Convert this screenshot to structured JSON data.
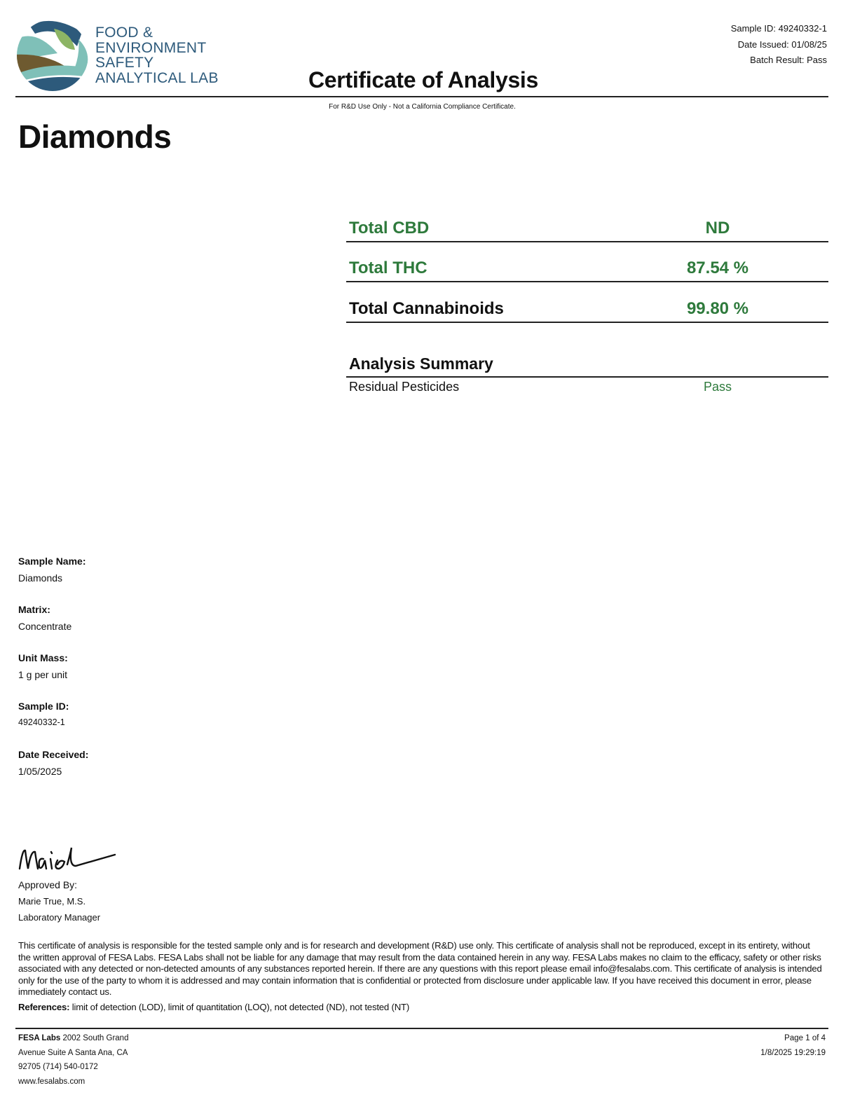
{
  "header": {
    "logo_lines": [
      "FOOD &",
      "ENVIRONMENT",
      "SAFETY",
      "ANALYTICAL LAB"
    ],
    "sample_id": "Sample ID: 49240332-1",
    "date_issued": "Date Issued: 01/08/25",
    "batch_result": "Batch Result: Pass",
    "title": "Certificate of Analysis",
    "subtitle": "For R&D Use Only - Not a California Compliance Certificate."
  },
  "product_name": "Diamonds",
  "totals": [
    {
      "label": "Total CBD",
      "value": "ND",
      "label_color": "#2e7a3c"
    },
    {
      "label": "Total THC",
      "value": "87.54 %",
      "label_color": "#2e7a3c"
    },
    {
      "label": "Total Cannabinoids",
      "value": "99.80 %",
      "label_color": "#111111"
    }
  ],
  "analysis_summary": {
    "heading": "Analysis Summary",
    "rows": [
      {
        "label": "Residual Pesticides",
        "result": "Pass"
      }
    ]
  },
  "sample_info": [
    {
      "key": "Sample Name:",
      "value": "Diamonds"
    },
    {
      "key": "Matrix:",
      "value": "Concentrate"
    },
    {
      "key": "Unit Mass:",
      "value": "1 g per unit"
    },
    {
      "key": "Sample ID:",
      "value": "49240332-1"
    },
    {
      "key": "Date Received:",
      "value": "1/05/2025"
    }
  ],
  "approval": {
    "signature": "Maries",
    "approved_by": "Approved By:",
    "name": "Marie True, M.S.",
    "role": "Laboratory Manager"
  },
  "disclaimer": "This certificate of analysis is responsible for the tested sample only and is for research and development (R&D) use only. This certificate of analysis shall not be reproduced, except in its entirety, without the written approval of FESA Labs. FESA Labs shall not be liable for any damage that may result from the data contained herein in any way. FESA Labs makes no claim to the efficacy, safety or other risks associated with any detected or non-detected amounts of any substances reported herein. If there are any questions with this report please email info@fesalabs.com. This certificate of analysis is intended only for the use of the party to whom it is addressed and may contain information that is confidential or protected from disclosure under applicable law. If you have received this document in error, please immediately contact us.",
  "references": {
    "label": "References:",
    "text": " limit of detection (LOD), limit of quantitation (LOQ), not detected (ND), not tested (NT)"
  },
  "footer": {
    "company": "FESA Labs",
    "address_line1": " 2002 South Grand",
    "address_line2": "Avenue Suite A Santa Ana, CA",
    "address_line3": "92705 (714) 540-0172",
    "website": "www.fesalabs.com",
    "page": "Page 1 of 4",
    "timestamp": "1/8/2025 19:29:19"
  },
  "colors": {
    "accent_green": "#2e7a3c",
    "logo_navy": "#2d5a7b",
    "logo_teal": "#7fc0b8",
    "logo_green": "#8db565",
    "logo_brown": "#6e5a30"
  }
}
